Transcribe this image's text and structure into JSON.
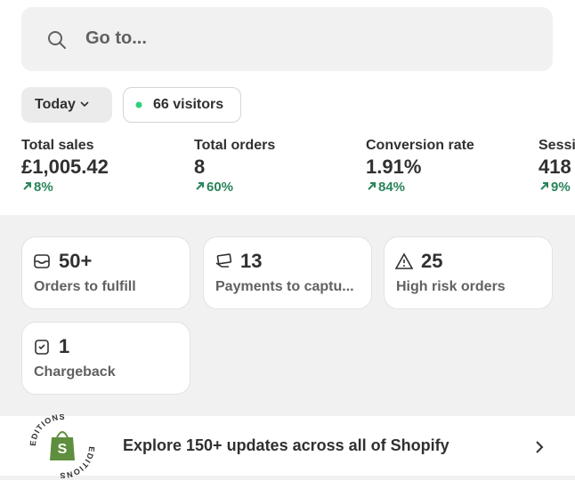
{
  "search": {
    "placeholder": "Go to..."
  },
  "filters": {
    "date": "Today",
    "visitors": "66 visitors"
  },
  "metrics": [
    {
      "label": "Total sales",
      "value": "£1,005.42",
      "change": "8%"
    },
    {
      "label": "Total orders",
      "value": "8",
      "change": "60%"
    },
    {
      "label": "Conversion rate",
      "value": "1.91%",
      "change": "84%"
    },
    {
      "label": "Sessi",
      "value": "418",
      "change": "9%"
    }
  ],
  "cards": [
    {
      "count": "50+",
      "label": "Orders to fulfill"
    },
    {
      "count": "13",
      "label": "Payments to captu..."
    },
    {
      "count": "25",
      "label": "High risk orders"
    },
    {
      "count": "1",
      "label": "Chargeback"
    }
  ],
  "banner": {
    "badge": "EDITIONS",
    "text": "Explore 150+ updates across all of Shopify"
  }
}
